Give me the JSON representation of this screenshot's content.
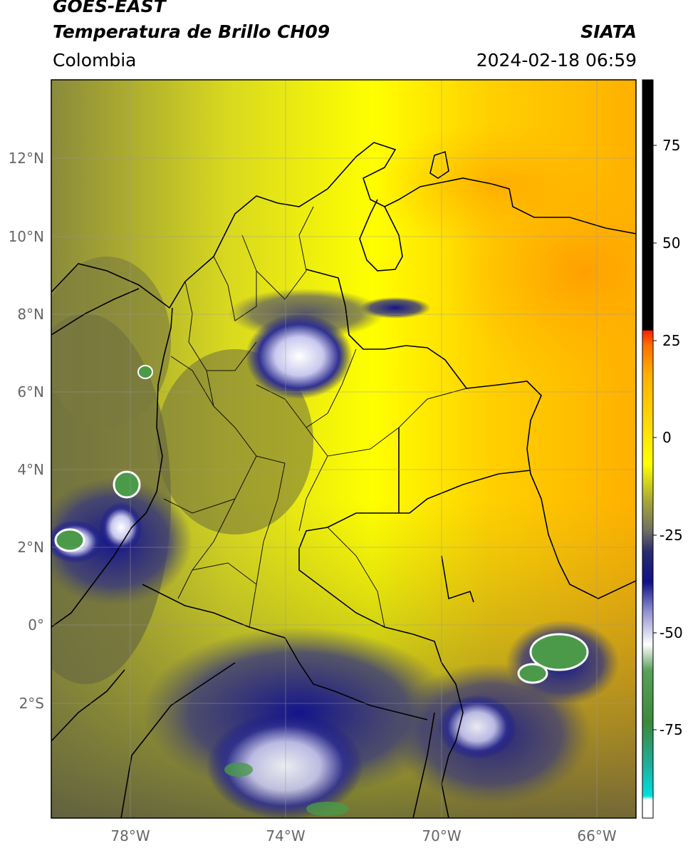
{
  "header": {
    "satellite": "GOES-EAST",
    "product": "Temperatura de Brillo CH09",
    "organization": "SIATA",
    "region": "Colombia",
    "datetime": "2024-02-18 06:59"
  },
  "map": {
    "lat_labels": [
      "12°N",
      "10°N",
      "8°N",
      "6°N",
      "4°N",
      "2°N",
      "0°",
      "2°S"
    ],
    "lon_labels": [
      "78°W",
      "74°W",
      "70°W",
      "66°W"
    ],
    "gridlines": true
  },
  "colorbar": {
    "ticks": [
      "75",
      "50",
      "25",
      "0",
      "-25",
      "-50",
      "-75"
    ],
    "colors": {
      "black": "#000000",
      "red": "#ff2200",
      "orange": "#ffa500",
      "yellow": "#ffff00",
      "olive": "#7a7a3a",
      "navy": "#10108a",
      "white": "#ffffff",
      "green": "#3a8a3a",
      "cyan": "#00dddd"
    }
  }
}
